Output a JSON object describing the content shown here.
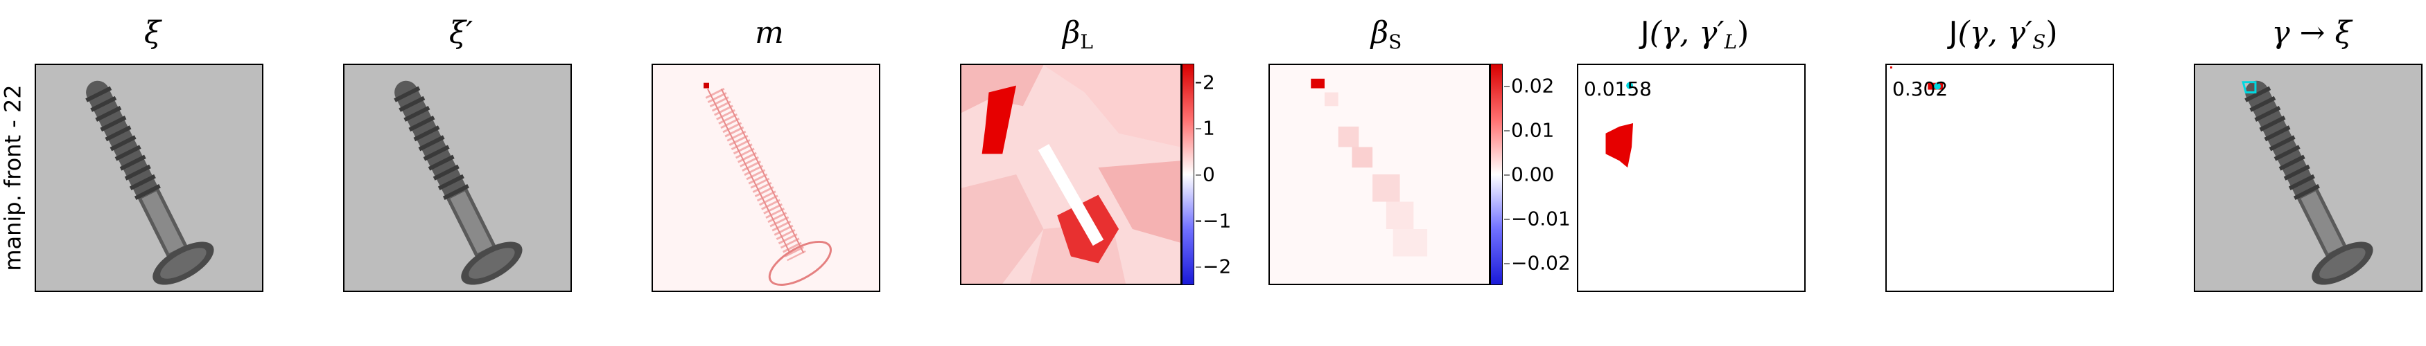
{
  "row_label": "manip. front - 22",
  "panels": [
    {
      "title": "ξ"
    },
    {
      "title": "ξ′"
    },
    {
      "title": "m"
    },
    {
      "title": "β",
      "sub": "L"
    },
    {
      "title": "β",
      "sub": "S"
    },
    {
      "title_func": "J",
      "title_args": "(γ, γ′",
      "sub": "L",
      "close": ")"
    },
    {
      "title_func": "J",
      "title_args": "(γ, γ′",
      "sub": "S",
      "close": ")"
    },
    {
      "title": "γ → ξ"
    }
  ],
  "colorbars": {
    "beta_l": {
      "ticks": [
        "2",
        "1",
        "0",
        "−1",
        "−2"
      ],
      "range": [
        -2.4,
        2.4
      ]
    },
    "beta_s": {
      "ticks": [
        "0.02",
        "0.01",
        "0.00",
        "−0.01",
        "−0.02"
      ],
      "range": [
        -0.025,
        0.025
      ]
    }
  },
  "annotations": {
    "j_l_score": "0.0158",
    "j_s_score": "0.302"
  },
  "colors": {
    "positive": "#e00000",
    "negative": "#1a1ad8",
    "highlight": "#00d8e0"
  }
}
